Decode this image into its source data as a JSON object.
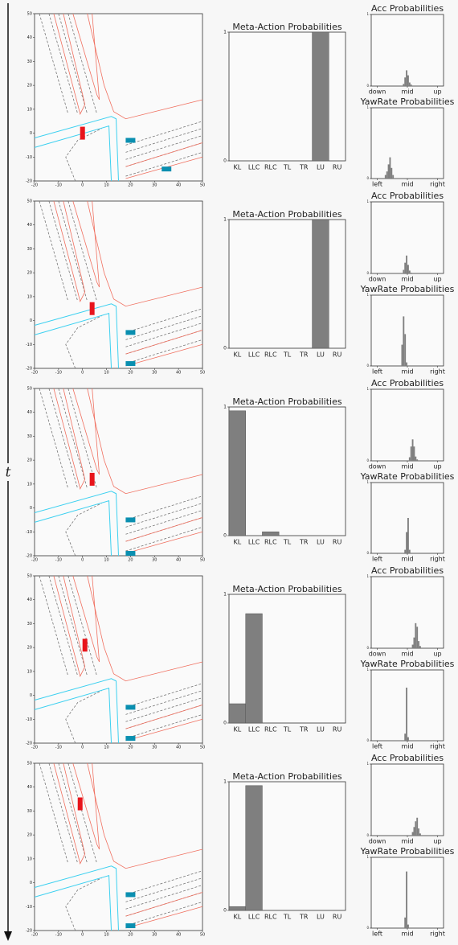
{
  "axis_label": "t",
  "chart_data": [
    {
      "type": "map",
      "xlim": [
        -20,
        50
      ],
      "ylim": [
        -20,
        50
      ],
      "xticks": [
        -20,
        -10,
        0,
        10,
        20,
        30,
        40,
        50
      ],
      "yticks": [
        -20,
        -10,
        0,
        10,
        20,
        30,
        40,
        50
      ],
      "x": [
        0,
        20,
        35
      ],
      "values": [
        0,
        -3,
        -15
      ],
      "colors": [
        "#e8141b",
        "#0a8fb0",
        "#0a8fb0"
      ]
    },
    {
      "type": "bar",
      "title": "Meta-Action Probabilities",
      "categories": [
        "KL",
        "LLC",
        "RLC",
        "TL",
        "TR",
        "LU",
        "RU"
      ],
      "values": [
        0,
        0,
        0,
        0,
        0,
        1,
        0
      ],
      "color": "#7f7f7f",
      "ylim": [
        0,
        1
      ],
      "yticks": [
        0,
        1
      ]
    },
    {
      "type": "histogram",
      "title": "Acc Probabilities",
      "bins": [
        -0.15,
        -0.1,
        -0.05,
        0,
        0.05,
        0.1,
        0.15
      ],
      "values": [
        0.03,
        0.12,
        0.22,
        0.15,
        0.05,
        0.02
      ],
      "color": "#7f7f7f",
      "xlim": [
        -1.2,
        1.2
      ],
      "xticks": [
        {
          "value": -1,
          "label": "down"
        },
        {
          "value": 0,
          "label": "mid"
        },
        {
          "value": 1,
          "label": "up"
        }
      ],
      "ylim": [
        0,
        1
      ],
      "yticks": [
        0,
        1
      ]
    },
    {
      "type": "histogram",
      "title": "YawRate Probabilities",
      "bins": [
        -0.75,
        -0.7,
        -0.65,
        -0.6,
        -0.55,
        -0.5,
        -0.45
      ],
      "values": [
        0.05,
        0.1,
        0.2,
        0.3,
        0.15,
        0.05
      ],
      "color": "#7f7f7f",
      "xlim": [
        -1.2,
        1.2
      ],
      "xticks": [
        {
          "value": -1,
          "label": "left"
        },
        {
          "value": 0,
          "label": "mid"
        },
        {
          "value": 1,
          "label": "right"
        }
      ],
      "ylim": [
        0,
        1
      ],
      "yticks": [
        0,
        1
      ]
    },
    {
      "type": "map",
      "xlim": [
        -20,
        50
      ],
      "ylim": [
        -20,
        50
      ],
      "xticks": [
        -20,
        -10,
        0,
        10,
        20,
        30,
        40,
        50
      ],
      "yticks": [
        -20,
        -10,
        0,
        10,
        20,
        30,
        40,
        50
      ],
      "x": [
        4,
        20,
        20
      ],
      "values": [
        5,
        -5,
        -18
      ],
      "colors": [
        "#e8141b",
        "#0a8fb0",
        "#0a8fb0"
      ]
    },
    {
      "type": "bar",
      "title": "Meta-Action Probabilities",
      "categories": [
        "KL",
        "LLC",
        "RLC",
        "TL",
        "TR",
        "LU",
        "RU"
      ],
      "values": [
        0,
        0,
        0,
        0,
        0,
        1,
        0
      ],
      "color": "#7f7f7f",
      "ylim": [
        0,
        1
      ],
      "yticks": [
        0,
        1
      ]
    },
    {
      "type": "histogram",
      "title": "Acc Probabilities",
      "bins": [
        -0.15,
        -0.1,
        -0.05,
        0,
        0.05,
        0.1,
        0.15
      ],
      "values": [
        0.05,
        0.15,
        0.25,
        0.12,
        0.04,
        0.01
      ],
      "color": "#7f7f7f",
      "xlim": [
        -1.2,
        1.2
      ],
      "xticks": [
        {
          "value": -1,
          "label": "down"
        },
        {
          "value": 0,
          "label": "mid"
        },
        {
          "value": 1,
          "label": "up"
        }
      ],
      "ylim": [
        0,
        1
      ],
      "yticks": [
        0,
        1
      ]
    },
    {
      "type": "histogram",
      "title": "YawRate Probabilities",
      "bins": [
        -0.2,
        -0.15,
        -0.1,
        -0.05,
        0
      ],
      "values": [
        0.3,
        0.7,
        0.45,
        0.05
      ],
      "color": "#7f7f7f",
      "xlim": [
        -1.2,
        1.2
      ],
      "xticks": [
        {
          "value": -1,
          "label": "left"
        },
        {
          "value": 0,
          "label": "mid"
        },
        {
          "value": 1,
          "label": "right"
        }
      ],
      "ylim": [
        0,
        1
      ],
      "yticks": [
        0,
        1
      ]
    },
    {
      "type": "map",
      "xlim": [
        -20,
        50
      ],
      "ylim": [
        -20,
        50
      ],
      "xticks": [
        -20,
        -10,
        0,
        10,
        20,
        30,
        40,
        50
      ],
      "yticks": [
        -20,
        -10,
        0,
        10,
        20,
        30,
        40,
        50
      ],
      "x": [
        4,
        20,
        20
      ],
      "values": [
        12,
        -5,
        -19
      ],
      "colors": [
        "#e8141b",
        "#0a8fb0",
        "#0a8fb0"
      ]
    },
    {
      "type": "bar",
      "title": "Meta-Action Probabilities",
      "categories": [
        "KL",
        "LLC",
        "RLC",
        "TL",
        "TR",
        "LU",
        "RU"
      ],
      "values": [
        0.97,
        0,
        0.03,
        0,
        0,
        0,
        0
      ],
      "color": "#7f7f7f",
      "ylim": [
        0,
        1
      ],
      "yticks": [
        0,
        1
      ]
    },
    {
      "type": "histogram",
      "title": "Acc Probabilities",
      "bins": [
        0.05,
        0.1,
        0.15,
        0.2,
        0.25,
        0.3,
        0.35
      ],
      "values": [
        0.05,
        0.2,
        0.3,
        0.2,
        0.06,
        0.02
      ],
      "color": "#7f7f7f",
      "xlim": [
        -1.2,
        1.2
      ],
      "xticks": [
        {
          "value": -1,
          "label": "down"
        },
        {
          "value": 0,
          "label": "mid"
        },
        {
          "value": 1,
          "label": "up"
        }
      ],
      "ylim": [
        0,
        1
      ],
      "yticks": [
        0,
        1
      ]
    },
    {
      "type": "histogram",
      "title": "YawRate Probabilities",
      "bins": [
        -0.1,
        -0.05,
        0,
        0.05,
        0.1
      ],
      "values": [
        0.05,
        0.3,
        0.5,
        0.05
      ],
      "color": "#7f7f7f",
      "xlim": [
        -1.2,
        1.2
      ],
      "xticks": [
        {
          "value": -1,
          "label": "left"
        },
        {
          "value": 0,
          "label": "mid"
        },
        {
          "value": 1,
          "label": "right"
        }
      ],
      "ylim": [
        0,
        1
      ],
      "yticks": [
        0,
        1
      ]
    },
    {
      "type": "map",
      "xlim": [
        -20,
        50
      ],
      "ylim": [
        -20,
        50
      ],
      "xticks": [
        -20,
        -10,
        0,
        10,
        20,
        30,
        40,
        50
      ],
      "yticks": [
        -20,
        -10,
        0,
        10,
        20,
        30,
        40,
        50
      ],
      "x": [
        1,
        20,
        20
      ],
      "values": [
        21,
        -5,
        -18
      ],
      "colors": [
        "#e8141b",
        "#0a8fb0",
        "#0a8fb0"
      ]
    },
    {
      "type": "bar",
      "title": "Meta-Action Probabilities",
      "categories": [
        "KL",
        "LLC",
        "RLC",
        "TL",
        "TR",
        "LU",
        "RU"
      ],
      "values": [
        0.15,
        0.85,
        0,
        0,
        0,
        0,
        0
      ],
      "color": "#7f7f7f",
      "ylim": [
        0,
        1
      ],
      "yticks": [
        0,
        1
      ]
    },
    {
      "type": "histogram",
      "title": "Acc Probabilities",
      "bins": [
        0.15,
        0.2,
        0.25,
        0.3,
        0.35,
        0.4,
        0.45
      ],
      "values": [
        0.05,
        0.15,
        0.35,
        0.3,
        0.1,
        0.03
      ],
      "color": "#7f7f7f",
      "xlim": [
        -1.2,
        1.2
      ],
      "xticks": [
        {
          "value": -1,
          "label": "down"
        },
        {
          "value": 0,
          "label": "mid"
        },
        {
          "value": 1,
          "label": "up"
        }
      ],
      "ylim": [
        0,
        1
      ],
      "yticks": [
        0,
        1
      ]
    },
    {
      "type": "histogram",
      "title": "YawRate Probabilities",
      "bins": [
        -0.1,
        -0.05,
        0,
        0.05
      ],
      "values": [
        0.1,
        0.75,
        0.05
      ],
      "color": "#7f7f7f",
      "xlim": [
        -1.2,
        1.2
      ],
      "xticks": [
        {
          "value": -1,
          "label": "left"
        },
        {
          "value": 0,
          "label": "mid"
        },
        {
          "value": 1,
          "label": "right"
        }
      ],
      "ylim": [
        0,
        1
      ],
      "yticks": [
        0,
        1
      ]
    },
    {
      "type": "map",
      "xlim": [
        -20,
        50
      ],
      "ylim": [
        -20,
        50
      ],
      "xticks": [
        -20,
        -10,
        0,
        10,
        20,
        30,
        40,
        50
      ],
      "yticks": [
        -20,
        -10,
        0,
        10,
        20,
        30,
        40,
        50
      ],
      "x": [
        -1,
        20,
        20
      ],
      "values": [
        33,
        -5,
        -18
      ],
      "colors": [
        "#e8141b",
        "#0a8fb0",
        "#0a8fb0"
      ]
    },
    {
      "type": "bar",
      "title": "Meta-Action Probabilities",
      "categories": [
        "KL",
        "LLC",
        "RLC",
        "TL",
        "TR",
        "LU",
        "RU"
      ],
      "values": [
        0.03,
        0.97,
        0,
        0,
        0,
        0,
        0
      ],
      "color": "#7f7f7f",
      "ylim": [
        0,
        1
      ],
      "yticks": [
        0,
        1
      ]
    },
    {
      "type": "histogram",
      "title": "Acc Probabilities",
      "bins": [
        0.15,
        0.2,
        0.25,
        0.3,
        0.35,
        0.4,
        0.45
      ],
      "values": [
        0.05,
        0.12,
        0.2,
        0.25,
        0.1,
        0.03
      ],
      "color": "#7f7f7f",
      "xlim": [
        -1.2,
        1.2
      ],
      "xticks": [
        {
          "value": -1,
          "label": "down"
        },
        {
          "value": 0,
          "label": "mid"
        },
        {
          "value": 1,
          "label": "up"
        }
      ],
      "ylim": [
        0,
        1
      ],
      "yticks": [
        0,
        1
      ]
    },
    {
      "type": "histogram",
      "title": "YawRate Probabilities",
      "bins": [
        -0.1,
        -0.05,
        0,
        0.05
      ],
      "values": [
        0.15,
        0.8,
        0.05
      ],
      "color": "#7f7f7f",
      "xlim": [
        -1.2,
        1.2
      ],
      "xticks": [
        {
          "value": -1,
          "label": "left"
        },
        {
          "value": 0,
          "label": "mid"
        },
        {
          "value": 1,
          "label": "right"
        }
      ],
      "ylim": [
        0,
        1
      ],
      "yticks": [
        0,
        1
      ]
    }
  ]
}
